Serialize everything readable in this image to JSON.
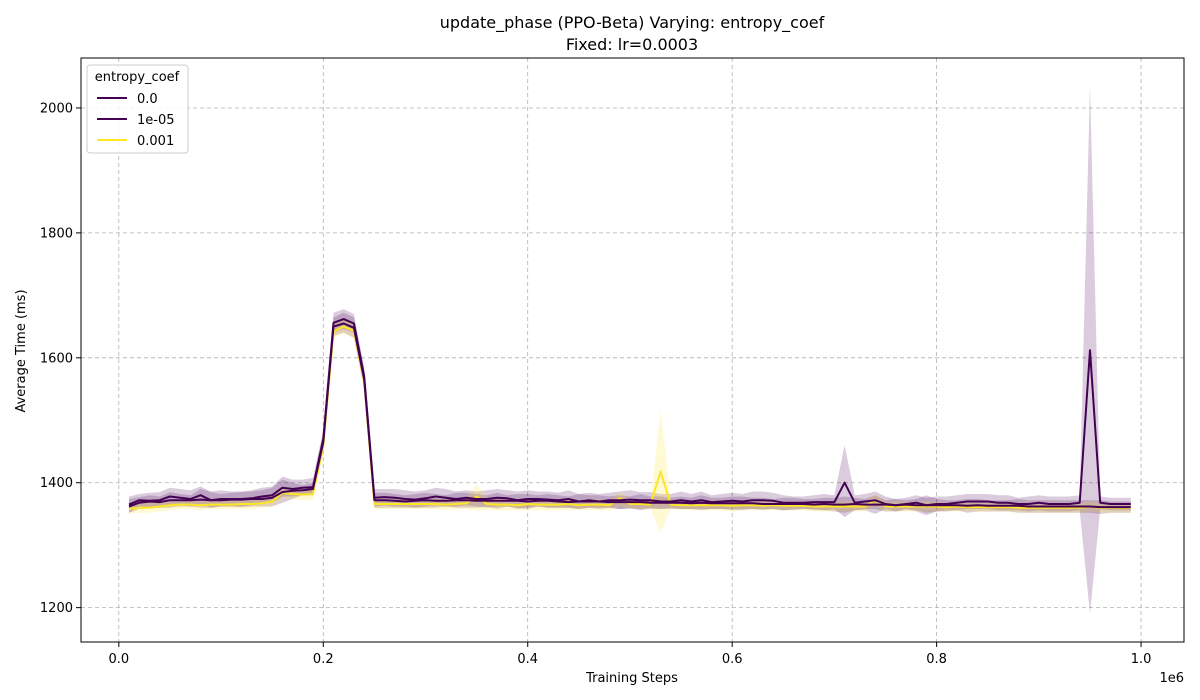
{
  "chart_data": {
    "type": "line",
    "title": "update_phase (PPO-Beta) Varying: entropy_coef",
    "subtitle": "Fixed: lr=0.0003",
    "xlabel": "Training Steps",
    "ylabel": "Average Time (ms)",
    "x_offset_label": "1e6",
    "xlim": [
      -0.037,
      1.042
    ],
    "ylim": [
      1145,
      2080
    ],
    "xticks": [
      0.0,
      0.2,
      0.4,
      0.6,
      0.8,
      1.0
    ],
    "xtick_labels": [
      "0.0",
      "0.2",
      "0.4",
      "0.6",
      "0.8",
      "1.0"
    ],
    "yticks": [
      1200,
      1400,
      1600,
      1800,
      2000
    ],
    "ytick_labels": [
      "1200",
      "1400",
      "1600",
      "1800",
      "2000"
    ],
    "grid": true,
    "legend": {
      "title": "entropy_coef",
      "placement": "top-left"
    },
    "x": [
      0.01,
      0.02,
      0.03,
      0.04,
      0.05,
      0.06,
      0.07,
      0.08,
      0.09,
      0.1,
      0.11,
      0.12,
      0.13,
      0.14,
      0.15,
      0.16,
      0.17,
      0.18,
      0.19,
      0.2,
      0.21,
      0.22,
      0.23,
      0.24,
      0.25,
      0.26,
      0.27,
      0.28,
      0.29,
      0.3,
      0.31,
      0.32,
      0.33,
      0.34,
      0.35,
      0.36,
      0.37,
      0.38,
      0.39,
      0.4,
      0.41,
      0.42,
      0.43,
      0.44,
      0.45,
      0.46,
      0.47,
      0.48,
      0.49,
      0.5,
      0.51,
      0.52,
      0.53,
      0.54,
      0.55,
      0.56,
      0.57,
      0.58,
      0.59,
      0.6,
      0.61,
      0.62,
      0.63,
      0.64,
      0.65,
      0.66,
      0.67,
      0.68,
      0.69,
      0.7,
      0.71,
      0.72,
      0.73,
      0.74,
      0.75,
      0.76,
      0.77,
      0.78,
      0.79,
      0.8,
      0.81,
      0.82,
      0.83,
      0.84,
      0.85,
      0.86,
      0.87,
      0.88,
      0.89,
      0.9,
      0.91,
      0.92,
      0.93,
      0.94,
      0.95,
      0.96,
      0.97,
      0.98,
      0.99
    ],
    "series": [
      {
        "name": "0.0",
        "color": "#440154",
        "values": [
          1362,
          1368,
          1370,
          1369,
          1372,
          1372,
          1372,
          1373,
          1372,
          1372,
          1373,
          1373,
          1374,
          1374,
          1376,
          1385,
          1387,
          1388,
          1390,
          1465,
          1650,
          1655,
          1648,
          1565,
          1372,
          1372,
          1371,
          1370,
          1371,
          1372,
          1371,
          1371,
          1372,
          1372,
          1371,
          1371,
          1371,
          1371,
          1371,
          1370,
          1371,
          1371,
          1370,
          1369,
          1370,
          1370,
          1370,
          1369,
          1369,
          1369,
          1369,
          1368,
          1368,
          1368,
          1368,
          1367,
          1368,
          1367,
          1367,
          1367,
          1367,
          1367,
          1366,
          1366,
          1366,
          1366,
          1366,
          1365,
          1366,
          1365,
          1365,
          1366,
          1365,
          1365,
          1365,
          1364,
          1365,
          1364,
          1364,
          1364,
          1364,
          1364,
          1363,
          1364,
          1363,
          1363,
          1363,
          1363,
          1362,
          1362,
          1362,
          1362,
          1362,
          1362,
          1362,
          1361,
          1361,
          1361,
          1361
        ],
        "upper": [
          1374,
          1377,
          1380,
          1378,
          1385,
          1382,
          1380,
          1390,
          1385,
          1382,
          1384,
          1385,
          1386,
          1388,
          1392,
          1405,
          1400,
          1396,
          1400,
          1480,
          1665,
          1672,
          1665,
          1580,
          1384,
          1384,
          1382,
          1380,
          1382,
          1384,
          1382,
          1380,
          1384,
          1384,
          1382,
          1380,
          1384,
          1380,
          1382,
          1382,
          1380,
          1382,
          1380,
          1378,
          1382,
          1380,
          1380,
          1378,
          1380,
          1378,
          1382,
          1378,
          1378,
          1376,
          1378,
          1376,
          1380,
          1376,
          1376,
          1378,
          1378,
          1376,
          1376,
          1374,
          1376,
          1376,
          1374,
          1374,
          1376,
          1376,
          1378,
          1376,
          1374,
          1380,
          1372,
          1374,
          1372,
          1374,
          1380,
          1374,
          1372,
          1372,
          1374,
          1374,
          1372,
          1372,
          1372,
          1374,
          1372,
          1372,
          1372,
          1372,
          1372,
          1372,
          1372,
          1372,
          1370,
          1370,
          1370
        ],
        "lower": [
          1352,
          1358,
          1360,
          1360,
          1360,
          1362,
          1362,
          1360,
          1360,
          1362,
          1362,
          1361,
          1362,
          1362,
          1362,
          1368,
          1374,
          1380,
          1380,
          1450,
          1635,
          1640,
          1632,
          1550,
          1360,
          1360,
          1360,
          1360,
          1360,
          1360,
          1360,
          1362,
          1360,
          1360,
          1360,
          1362,
          1358,
          1362,
          1360,
          1358,
          1362,
          1360,
          1360,
          1360,
          1358,
          1360,
          1360,
          1360,
          1358,
          1360,
          1356,
          1358,
          1358,
          1360,
          1358,
          1358,
          1356,
          1358,
          1358,
          1356,
          1356,
          1358,
          1356,
          1358,
          1356,
          1356,
          1358,
          1356,
          1356,
          1354,
          1352,
          1356,
          1356,
          1350,
          1358,
          1354,
          1358,
          1354,
          1348,
          1354,
          1356,
          1356,
          1352,
          1354,
          1354,
          1354,
          1354,
          1352,
          1352,
          1352,
          1352,
          1352,
          1352,
          1352,
          1352,
          1350,
          1352,
          1352,
          1352
        ]
      },
      {
        "name": "1e-05",
        "color": "#440154",
        "values": [
          1365,
          1372,
          1371,
          1372,
          1378,
          1376,
          1374,
          1380,
          1372,
          1374,
          1374,
          1374,
          1375,
          1378,
          1380,
          1392,
          1390,
          1392,
          1393,
          1470,
          1656,
          1662,
          1655,
          1570,
          1376,
          1377,
          1376,
          1374,
          1373,
          1375,
          1378,
          1376,
          1374,
          1376,
          1374,
          1374,
          1376,
          1375,
          1372,
          1374,
          1374,
          1373,
          1372,
          1374,
          1370,
          1372,
          1370,
          1372,
          1372,
          1373,
          1372,
          1372,
          1370,
          1370,
          1372,
          1370,
          1372,
          1369,
          1370,
          1371,
          1370,
          1372,
          1372,
          1371,
          1368,
          1368,
          1368,
          1369,
          1369,
          1369,
          1400,
          1368,
          1370,
          1372,
          1366,
          1364,
          1366,
          1368,
          1364,
          1366,
          1366,
          1368,
          1370,
          1370,
          1370,
          1368,
          1368,
          1366,
          1366,
          1368,
          1366,
          1366,
          1366,
          1368,
          1612,
          1368,
          1366,
          1366,
          1366
        ],
        "upper": [
          1378,
          1382,
          1384,
          1385,
          1392,
          1390,
          1388,
          1394,
          1386,
          1388,
          1386,
          1386,
          1388,
          1392,
          1394,
          1410,
          1405,
          1405,
          1408,
          1485,
          1672,
          1678,
          1670,
          1585,
          1390,
          1390,
          1390,
          1388,
          1386,
          1388,
          1392,
          1390,
          1386,
          1388,
          1386,
          1388,
          1390,
          1388,
          1386,
          1388,
          1386,
          1386,
          1384,
          1388,
          1382,
          1384,
          1382,
          1384,
          1386,
          1388,
          1385,
          1385,
          1382,
          1382,
          1386,
          1382,
          1386,
          1380,
          1382,
          1384,
          1382,
          1386,
          1386,
          1384,
          1380,
          1378,
          1378,
          1380,
          1382,
          1380,
          1460,
          1380,
          1382,
          1386,
          1378,
          1374,
          1376,
          1380,
          1376,
          1378,
          1378,
          1380,
          1382,
          1382,
          1382,
          1380,
          1380,
          1376,
          1378,
          1380,
          1378,
          1378,
          1378,
          1380,
          2035,
          1378,
          1376,
          1376,
          1376
        ],
        "lower": [
          1352,
          1362,
          1360,
          1360,
          1364,
          1364,
          1362,
          1366,
          1360,
          1362,
          1362,
          1362,
          1364,
          1366,
          1368,
          1378,
          1378,
          1380,
          1380,
          1455,
          1640,
          1646,
          1640,
          1555,
          1362,
          1364,
          1362,
          1362,
          1360,
          1362,
          1364,
          1362,
          1362,
          1364,
          1362,
          1360,
          1362,
          1362,
          1358,
          1360,
          1362,
          1360,
          1360,
          1360,
          1358,
          1360,
          1358,
          1360,
          1358,
          1358,
          1358,
          1360,
          1358,
          1358,
          1358,
          1358,
          1358,
          1358,
          1358,
          1358,
          1358,
          1358,
          1358,
          1358,
          1356,
          1358,
          1358,
          1358,
          1356,
          1358,
          1345,
          1356,
          1358,
          1358,
          1354,
          1354,
          1356,
          1356,
          1352,
          1354,
          1354,
          1356,
          1358,
          1358,
          1358,
          1356,
          1356,
          1356,
          1354,
          1356,
          1354,
          1354,
          1354,
          1356,
          1190,
          1358,
          1356,
          1356,
          1356
        ]
      },
      {
        "name": "0.001",
        "color": "#fde725",
        "values": [
          1358,
          1360,
          1360,
          1362,
          1364,
          1365,
          1365,
          1364,
          1365,
          1365,
          1365,
          1366,
          1366,
          1367,
          1370,
          1384,
          1382,
          1381,
          1382,
          1458,
          1642,
          1650,
          1643,
          1562,
          1366,
          1366,
          1366,
          1366,
          1366,
          1366,
          1366,
          1365,
          1366,
          1367,
          1378,
          1366,
          1365,
          1365,
          1364,
          1366,
          1365,
          1365,
          1365,
          1366,
          1364,
          1365,
          1365,
          1364,
          1375,
          1366,
          1366,
          1365,
          1418,
          1365,
          1364,
          1364,
          1364,
          1364,
          1364,
          1363,
          1364,
          1364,
          1363,
          1364,
          1363,
          1363,
          1363,
          1362,
          1362,
          1362,
          1362,
          1362,
          1362,
          1372,
          1362,
          1362,
          1362,
          1362,
          1362,
          1362,
          1361,
          1362,
          1361,
          1361,
          1361,
          1361,
          1361,
          1360,
          1360,
          1360,
          1360,
          1360,
          1360,
          1360,
          1362,
          1360,
          1360,
          1360,
          1360
        ],
        "upper": [
          1366,
          1368,
          1368,
          1370,
          1372,
          1372,
          1372,
          1372,
          1372,
          1372,
          1372,
          1374,
          1374,
          1374,
          1378,
          1394,
          1390,
          1390,
          1392,
          1470,
          1655,
          1660,
          1655,
          1575,
          1376,
          1374,
          1374,
          1374,
          1374,
          1374,
          1374,
          1374,
          1374,
          1376,
          1398,
          1376,
          1374,
          1374,
          1372,
          1376,
          1374,
          1374,
          1374,
          1376,
          1372,
          1374,
          1374,
          1372,
          1385,
          1374,
          1374,
          1372,
          1515,
          1372,
          1372,
          1372,
          1372,
          1372,
          1372,
          1372,
          1372,
          1372,
          1370,
          1372,
          1370,
          1370,
          1370,
          1370,
          1370,
          1370,
          1370,
          1370,
          1370,
          1382,
          1370,
          1370,
          1370,
          1370,
          1370,
          1370,
          1368,
          1370,
          1368,
          1368,
          1368,
          1368,
          1368,
          1368,
          1368,
          1368,
          1368,
          1368,
          1368,
          1368,
          1370,
          1368,
          1368,
          1368,
          1368
        ],
        "lower": [
          1350,
          1352,
          1352,
          1354,
          1356,
          1358,
          1358,
          1356,
          1358,
          1358,
          1358,
          1358,
          1358,
          1360,
          1362,
          1374,
          1374,
          1372,
          1372,
          1446,
          1630,
          1640,
          1631,
          1549,
          1356,
          1358,
          1358,
          1358,
          1358,
          1358,
          1358,
          1356,
          1358,
          1358,
          1355,
          1356,
          1356,
          1356,
          1356,
          1356,
          1356,
          1356,
          1356,
          1356,
          1356,
          1356,
          1356,
          1356,
          1362,
          1358,
          1358,
          1358,
          1320,
          1358,
          1356,
          1356,
          1356,
          1356,
          1356,
          1354,
          1356,
          1356,
          1356,
          1356,
          1356,
          1356,
          1356,
          1354,
          1354,
          1354,
          1354,
          1354,
          1354,
          1362,
          1354,
          1354,
          1354,
          1354,
          1354,
          1354,
          1354,
          1354,
          1354,
          1354,
          1354,
          1354,
          1354,
          1352,
          1352,
          1352,
          1352,
          1352,
          1352,
          1352,
          1354,
          1352,
          1352,
          1352,
          1352
        ]
      }
    ]
  }
}
